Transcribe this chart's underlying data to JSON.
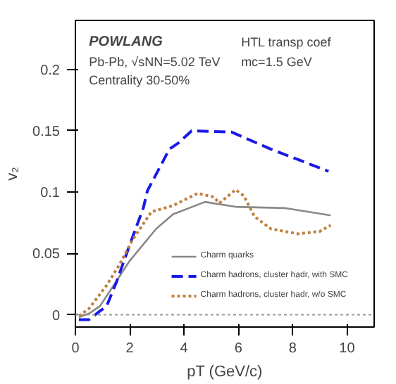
{
  "chart_data": {
    "type": "line",
    "title": "POWLANG",
    "xlabel": "pT (GeV/c)",
    "ylabel": "v₂",
    "annotations": [
      "Pb-Pb, √sNN=5.02 TeV",
      "Centrality 30-50%",
      "HTL transp coef",
      "mc=1.5 GeV"
    ],
    "xlim": [
      0,
      11
    ],
    "ylim": [
      -0.01,
      0.24
    ],
    "xticks": [
      0,
      2,
      4,
      6,
      8,
      10
    ],
    "yticks": [
      0,
      0.05,
      0.1,
      0.15,
      0.2
    ],
    "grid": false,
    "legend": "bottom right",
    "ref_lines": [
      {
        "axis": "y",
        "value": 0,
        "color": "#999999",
        "line_style": "dotted"
      }
    ],
    "series": [
      {
        "name": "Charm quarks",
        "color": "#888888",
        "line_style": "solid",
        "x": [
          0.13,
          0.5,
          0.9,
          1.35,
          2.0,
          2.97,
          3.6,
          4.77,
          5.9,
          7.7,
          9.4
        ],
        "values": [
          -0.002,
          0.001,
          0.007,
          0.022,
          0.044,
          0.07,
          0.082,
          0.092,
          0.088,
          0.087,
          0.081
        ]
      },
      {
        "name": "Charm hadrons, cluster hadr, with SMC",
        "color": "#1a1ae6",
        "line_style": "dashed",
        "x": [
          0.13,
          0.5,
          0.9,
          1.15,
          1.5,
          2.0,
          2.5,
          2.65,
          3.46,
          3.79,
          4.28,
          5.74,
          7.2,
          9.32
        ],
        "values": [
          -0.004,
          -0.004,
          0.003,
          0.007,
          0.026,
          0.057,
          0.087,
          0.101,
          0.135,
          0.14,
          0.15,
          0.149,
          0.135,
          0.117
        ]
      },
      {
        "name": "Charm hadrons, cluster hadr, w/o SMC",
        "color": "#c08040",
        "line_style": "dotted",
        "x": [
          0.13,
          0.5,
          1.15,
          1.6,
          2.1,
          2.8,
          3.6,
          4.5,
          5.1,
          5.3,
          5.9,
          6.2,
          6.6,
          7.2,
          8.2,
          9.0,
          9.4
        ],
        "values": [
          -0.001,
          0.005,
          0.024,
          0.04,
          0.061,
          0.084,
          0.089,
          0.099,
          0.096,
          0.091,
          0.102,
          0.097,
          0.08,
          0.07,
          0.066,
          0.068,
          0.073
        ]
      }
    ]
  }
}
